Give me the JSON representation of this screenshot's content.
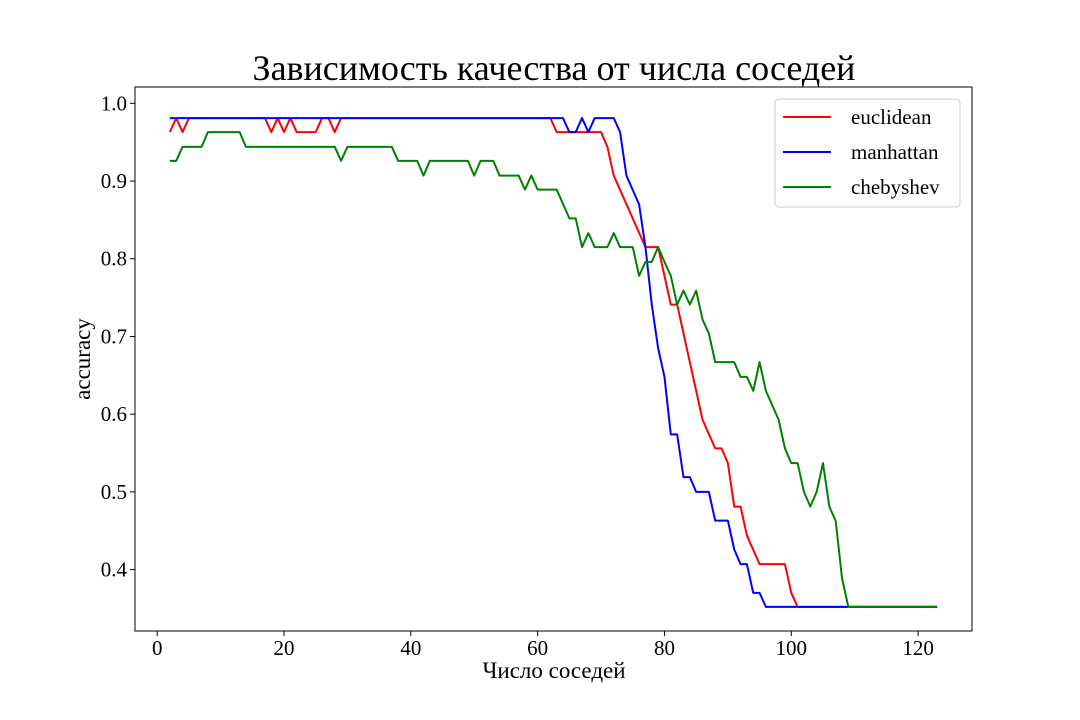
{
  "chart_data": {
    "type": "line",
    "title": "Зависимость качества от числа соседей",
    "xlabel": "Число соседей",
    "ylabel": "accuracy",
    "xlim": [
      -3.5,
      128.5
    ],
    "ylim": [
      0.321,
      1.021
    ],
    "x_ticks": [
      0,
      20,
      40,
      60,
      80,
      100,
      120
    ],
    "y_ticks": [
      0.4,
      0.5,
      0.6,
      0.7,
      0.8,
      0.9,
      1.0
    ],
    "y_tick_labels": [
      "0.4",
      "0.5",
      "0.6",
      "0.7",
      "0.8",
      "0.9",
      "1.0"
    ],
    "grid": false,
    "legend_position": "top-right",
    "series": [
      {
        "name": "euclidean",
        "color": "#ff0000",
        "points": [
          [
            2,
            0.963
          ],
          [
            3,
            0.981
          ],
          [
            4,
            0.963
          ],
          [
            5,
            0.981
          ],
          [
            6,
            0.981
          ],
          [
            17,
            0.981
          ],
          [
            18,
            0.963
          ],
          [
            19,
            0.981
          ],
          [
            20,
            0.963
          ],
          [
            21,
            0.981
          ],
          [
            22,
            0.963
          ],
          [
            25,
            0.963
          ],
          [
            26,
            0.981
          ],
          [
            27,
            0.981
          ],
          [
            28,
            0.963
          ],
          [
            29,
            0.981
          ],
          [
            62,
            0.981
          ],
          [
            63,
            0.963
          ],
          [
            70,
            0.963
          ],
          [
            71,
            0.944
          ],
          [
            72,
            0.907
          ],
          [
            77,
            0.815
          ],
          [
            79,
            0.815
          ],
          [
            80,
            0.778
          ],
          [
            81,
            0.741
          ],
          [
            82,
            0.741
          ],
          [
            86,
            0.593
          ],
          [
            88,
            0.556
          ],
          [
            89,
            0.556
          ],
          [
            90,
            0.537
          ],
          [
            91,
            0.481
          ],
          [
            92,
            0.481
          ],
          [
            93,
            0.444
          ],
          [
            95,
            0.407
          ],
          [
            99,
            0.407
          ],
          [
            100,
            0.37
          ],
          [
            101,
            0.352
          ],
          [
            123,
            0.352
          ]
        ]
      },
      {
        "name": "manhattan",
        "color": "#0000ff",
        "points": [
          [
            2,
            0.981
          ],
          [
            64,
            0.981
          ],
          [
            65,
            0.963
          ],
          [
            66,
            0.963
          ],
          [
            67,
            0.981
          ],
          [
            68,
            0.963
          ],
          [
            69,
            0.981
          ],
          [
            72,
            0.981
          ],
          [
            73,
            0.963
          ],
          [
            74,
            0.907
          ],
          [
            76,
            0.87
          ],
          [
            77,
            0.815
          ],
          [
            78,
            0.741
          ],
          [
            79,
            0.685
          ],
          [
            80,
            0.648
          ],
          [
            81,
            0.574
          ],
          [
            82,
            0.574
          ],
          [
            83,
            0.519
          ],
          [
            84,
            0.519
          ],
          [
            85,
            0.5
          ],
          [
            87,
            0.5
          ],
          [
            88,
            0.463
          ],
          [
            90,
            0.463
          ],
          [
            91,
            0.426
          ],
          [
            92,
            0.407
          ],
          [
            93,
            0.407
          ],
          [
            94,
            0.37
          ],
          [
            95,
            0.37
          ],
          [
            96,
            0.352
          ],
          [
            123,
            0.352
          ]
        ]
      },
      {
        "name": "chebyshev",
        "color": "#008000",
        "points": [
          [
            2,
            0.926
          ],
          [
            3,
            0.926
          ],
          [
            4,
            0.944
          ],
          [
            7,
            0.944
          ],
          [
            8,
            0.963
          ],
          [
            13,
            0.963
          ],
          [
            14,
            0.944
          ],
          [
            28,
            0.944
          ],
          [
            29,
            0.926
          ],
          [
            30,
            0.944
          ],
          [
            37,
            0.944
          ],
          [
            38,
            0.926
          ],
          [
            41,
            0.926
          ],
          [
            42,
            0.907
          ],
          [
            43,
            0.926
          ],
          [
            49,
            0.926
          ],
          [
            50,
            0.907
          ],
          [
            51,
            0.926
          ],
          [
            53,
            0.926
          ],
          [
            54,
            0.907
          ],
          [
            57,
            0.907
          ],
          [
            58,
            0.889
          ],
          [
            59,
            0.907
          ],
          [
            60,
            0.889
          ],
          [
            63,
            0.889
          ],
          [
            65,
            0.852
          ],
          [
            66,
            0.852
          ],
          [
            67,
            0.815
          ],
          [
            68,
            0.833
          ],
          [
            69,
            0.815
          ],
          [
            71,
            0.815
          ],
          [
            72,
            0.833
          ],
          [
            73,
            0.815
          ],
          [
            75,
            0.815
          ],
          [
            76,
            0.778
          ],
          [
            77,
            0.796
          ],
          [
            78,
            0.796
          ],
          [
            79,
            0.815
          ],
          [
            80,
            0.796
          ],
          [
            81,
            0.778
          ],
          [
            82,
            0.741
          ],
          [
            83,
            0.759
          ],
          [
            84,
            0.741
          ],
          [
            85,
            0.759
          ],
          [
            86,
            0.722
          ],
          [
            87,
            0.704
          ],
          [
            88,
            0.667
          ],
          [
            91,
            0.667
          ],
          [
            92,
            0.648
          ],
          [
            93,
            0.648
          ],
          [
            94,
            0.63
          ],
          [
            95,
            0.667
          ],
          [
            96,
            0.63
          ],
          [
            98,
            0.593
          ],
          [
            99,
            0.556
          ],
          [
            100,
            0.537
          ],
          [
            101,
            0.537
          ],
          [
            102,
            0.5
          ],
          [
            103,
            0.481
          ],
          [
            104,
            0.5
          ],
          [
            105,
            0.537
          ],
          [
            106,
            0.481
          ],
          [
            107,
            0.463
          ],
          [
            108,
            0.389
          ],
          [
            109,
            0.352
          ],
          [
            123,
            0.352
          ]
        ]
      }
    ]
  }
}
